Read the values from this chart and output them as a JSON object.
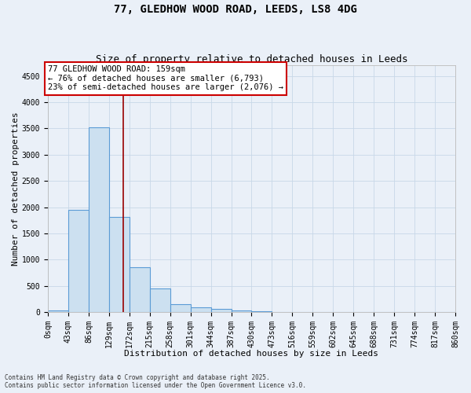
{
  "title_line1": "77, GLEDHOW WOOD ROAD, LEEDS, LS8 4DG",
  "title_line2": "Size of property relative to detached houses in Leeds",
  "xlabel": "Distribution of detached houses by size in Leeds",
  "ylabel": "Number of detached properties",
  "bin_edges": [
    0,
    43,
    86,
    129,
    172,
    215,
    258,
    301,
    344,
    387,
    430,
    473,
    516,
    559,
    602,
    645,
    688,
    731,
    774,
    817,
    860
  ],
  "bar_heights": [
    30,
    1950,
    3520,
    1820,
    850,
    450,
    160,
    90,
    60,
    40,
    15,
    5,
    3,
    2,
    1,
    0,
    0,
    0,
    0,
    0
  ],
  "bar_color": "#cce0f0",
  "bar_edge_color": "#5b9bd5",
  "property_size": 159,
  "vline_color": "#990000",
  "annotation_text": "77 GLEDHOW WOOD ROAD: 159sqm\n← 76% of detached houses are smaller (6,793)\n23% of semi-detached houses are larger (2,076) →",
  "annotation_box_facecolor": "#ffffff",
  "annotation_box_edgecolor": "#cc0000",
  "ylim": [
    0,
    4700
  ],
  "yticks": [
    0,
    500,
    1000,
    1500,
    2000,
    2500,
    3000,
    3500,
    4000,
    4500
  ],
  "grid_color": "#c8d8e8",
  "background_color": "#eaf0f8",
  "copyright_text": "Contains HM Land Registry data © Crown copyright and database right 2025.\nContains public sector information licensed under the Open Government Licence v3.0.",
  "tick_label_fontsize": 7,
  "axis_label_fontsize": 8,
  "title_fontsize1": 10,
  "title_fontsize2": 9,
  "annotation_fontsize": 7.5
}
